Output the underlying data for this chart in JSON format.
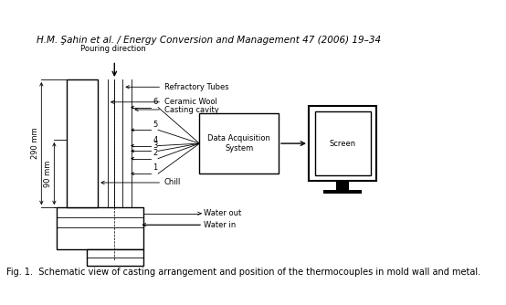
{
  "title": "H.M. Şahin et al. / Energy Conversion and Management 47 (2006) 19–34",
  "caption": "Fig. 1.  Schematic view of casting arrangement and position of the thermocouples in mold wall and metal.",
  "background_color": "#ffffff",
  "title_fontsize": 7.5,
  "caption_fontsize": 7.0,
  "label_refractory": "Refractory Tubes",
  "label_ceramic": "Ceramic Wool",
  "label_casting": "Casting cavity",
  "label_chill": "Chill",
  "label_water_out": "Water out",
  "label_water_in": "Water in",
  "label_das": "Data Acquisition\nSystem",
  "label_screen": "Screen",
  "label_pouring": "Pouring direction",
  "label_290mm": "290 mm",
  "label_90mm": "90 mm",
  "thermocouple_labels": [
    "6",
    "5",
    "4",
    "3",
    "2",
    "1"
  ]
}
